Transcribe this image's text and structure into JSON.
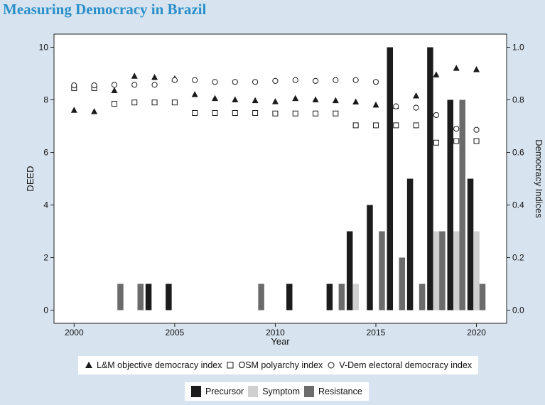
{
  "page": {
    "title": "Measuring Democracy in Brazil"
  },
  "chart_data": {
    "type": "bar",
    "xlabel": "Year",
    "ylabel": "DEED",
    "y2label": "Democracy Indices",
    "xlim": [
      1999,
      2021.5
    ],
    "ylim": [
      -0.5,
      10.5
    ],
    "y2lim": [
      -0.05,
      1.05
    ],
    "x_ticks": [
      2000,
      2005,
      2010,
      2015,
      2020
    ],
    "y_ticks": [
      0,
      2,
      4,
      6,
      8,
      10
    ],
    "y2_ticks": [
      "0.0",
      "0.2",
      "0.4",
      "0.6",
      "0.8",
      "1.0"
    ],
    "bar_series": [
      {
        "name": "Precursor",
        "color": "#1c1c1c",
        "points": [
          [
            2004,
            1
          ],
          [
            2005,
            1
          ],
          [
            2011,
            1
          ],
          [
            2013,
            1
          ],
          [
            2014,
            3
          ],
          [
            2015,
            4
          ],
          [
            2016,
            10
          ],
          [
            2017,
            5
          ],
          [
            2018,
            10
          ],
          [
            2019,
            8
          ],
          [
            2020,
            5
          ]
        ]
      },
      {
        "name": "Symptom",
        "color": "#cfcfcf",
        "points": [
          [
            2014,
            1
          ],
          [
            2018,
            3
          ],
          [
            2019,
            3
          ],
          [
            2020,
            3
          ]
        ]
      },
      {
        "name": "Resistance",
        "color": "#6b6b6b",
        "points": [
          [
            2002,
            1
          ],
          [
            2003,
            1
          ],
          [
            2009,
            1
          ],
          [
            2013,
            1
          ],
          [
            2015,
            3
          ],
          [
            2016,
            2
          ],
          [
            2017,
            1
          ],
          [
            2018,
            3
          ],
          [
            2019,
            8
          ],
          [
            2020,
            1
          ]
        ]
      }
    ],
    "index_series": [
      {
        "name": "L&M objective democracy index",
        "marker": "triangle",
        "points": [
          [
            2000,
            0.76
          ],
          [
            2001,
            0.755
          ],
          [
            2002,
            0.835
          ],
          [
            2003,
            0.89
          ],
          [
            2004,
            0.885
          ],
          [
            2005,
            0.88
          ],
          [
            2006,
            0.82
          ],
          [
            2007,
            0.805
          ],
          [
            2008,
            0.8
          ],
          [
            2009,
            0.797
          ],
          [
            2010,
            0.793
          ],
          [
            2011,
            0.805
          ],
          [
            2012,
            0.8
          ],
          [
            2013,
            0.797
          ],
          [
            2014,
            0.792
          ],
          [
            2015,
            0.78
          ],
          [
            2016,
            0.775
          ],
          [
            2017,
            0.815
          ],
          [
            2018,
            0.895
          ],
          [
            2019,
            0.92
          ],
          [
            2020,
            0.915
          ]
        ]
      },
      {
        "name": "OSM polyarchy index",
        "marker": "square",
        "points": [
          [
            2000,
            0.845
          ],
          [
            2001,
            0.845
          ],
          [
            2002,
            0.785
          ],
          [
            2003,
            0.79
          ],
          [
            2004,
            0.79
          ],
          [
            2005,
            0.79
          ],
          [
            2006,
            0.75
          ],
          [
            2007,
            0.75
          ],
          [
            2008,
            0.75
          ],
          [
            2009,
            0.75
          ],
          [
            2010,
            0.748
          ],
          [
            2011,
            0.748
          ],
          [
            2012,
            0.748
          ],
          [
            2013,
            0.748
          ],
          [
            2014,
            0.703
          ],
          [
            2015,
            0.703
          ],
          [
            2016,
            0.703
          ],
          [
            2017,
            0.703
          ],
          [
            2018,
            0.637
          ],
          [
            2019,
            0.643
          ],
          [
            2020,
            0.643
          ]
        ]
      },
      {
        "name": "V-Dem electoral democracy index",
        "marker": "circle",
        "points": [
          [
            2000,
            0.855
          ],
          [
            2001,
            0.855
          ],
          [
            2002,
            0.857
          ],
          [
            2003,
            0.857
          ],
          [
            2004,
            0.857
          ],
          [
            2005,
            0.875
          ],
          [
            2006,
            0.875
          ],
          [
            2007,
            0.868
          ],
          [
            2008,
            0.868
          ],
          [
            2009,
            0.868
          ],
          [
            2010,
            0.872
          ],
          [
            2011,
            0.875
          ],
          [
            2012,
            0.872
          ],
          [
            2013,
            0.875
          ],
          [
            2014,
            0.875
          ],
          [
            2015,
            0.868
          ],
          [
            2016,
            0.775
          ],
          [
            2017,
            0.77
          ],
          [
            2018,
            0.742
          ],
          [
            2019,
            0.69
          ],
          [
            2020,
            0.686
          ]
        ]
      }
    ]
  },
  "legend_indices": {
    "items": [
      {
        "label": "L&M objective democracy index",
        "marker": "triangle"
      },
      {
        "label": "OSM polyarchy index",
        "marker": "square"
      },
      {
        "label": "V-Dem electoral democracy index",
        "marker": "circle"
      }
    ]
  },
  "legend_events": {
    "items": [
      {
        "label": "Precursor",
        "color": "#1c1c1c"
      },
      {
        "label": "Symptom",
        "color": "#cfcfcf"
      },
      {
        "label": "Resistance",
        "color": "#6b6b6b"
      }
    ]
  }
}
